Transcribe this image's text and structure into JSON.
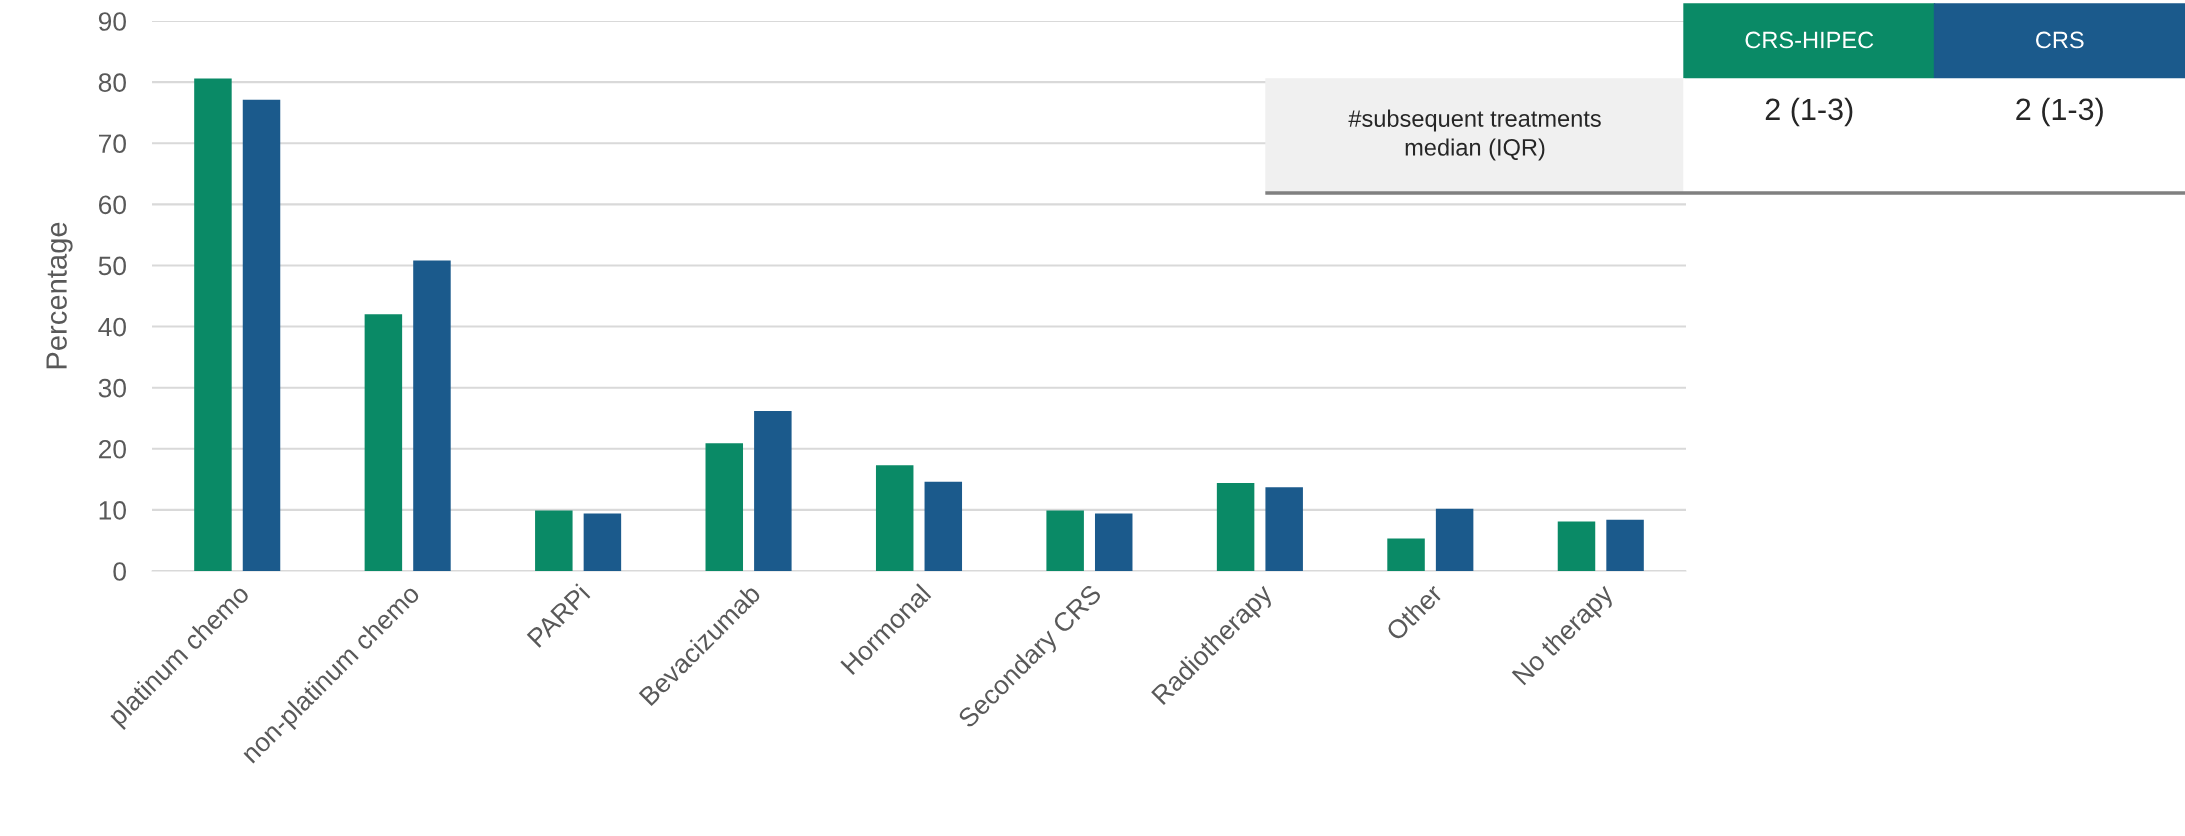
{
  "chart_data": {
    "type": "bar",
    "ylabel": "Percentage",
    "categories": [
      "platinum chemo",
      "non-platinum chemo",
      "PARPi",
      "Bevacizumab",
      "Hormonal",
      "Secondary CRS",
      "Radiotherapy",
      "Other",
      "No therapy"
    ],
    "series": [
      {
        "name": "CRS-HIPEC",
        "color": "#0a8a66",
        "values": [
          80.6,
          42.0,
          9.9,
          20.9,
          17.3,
          9.9,
          14.4,
          5.3,
          8.1
        ]
      },
      {
        "name": "CRS",
        "color": "#1b5a8c",
        "values": [
          77.1,
          50.8,
          9.4,
          26.2,
          14.6,
          9.4,
          13.7,
          10.2,
          8.4
        ]
      }
    ],
    "ylim": [
      0,
      90
    ],
    "yticks": [
      0,
      10,
      20,
      30,
      40,
      50,
      60,
      70,
      80,
      90
    ],
    "grid": "y",
    "legend": "top right",
    "annotations": [
      "#subsequent treatments\nmedian (IQR)",
      "2 (1-3)",
      "2 (1-3)"
    ]
  }
}
